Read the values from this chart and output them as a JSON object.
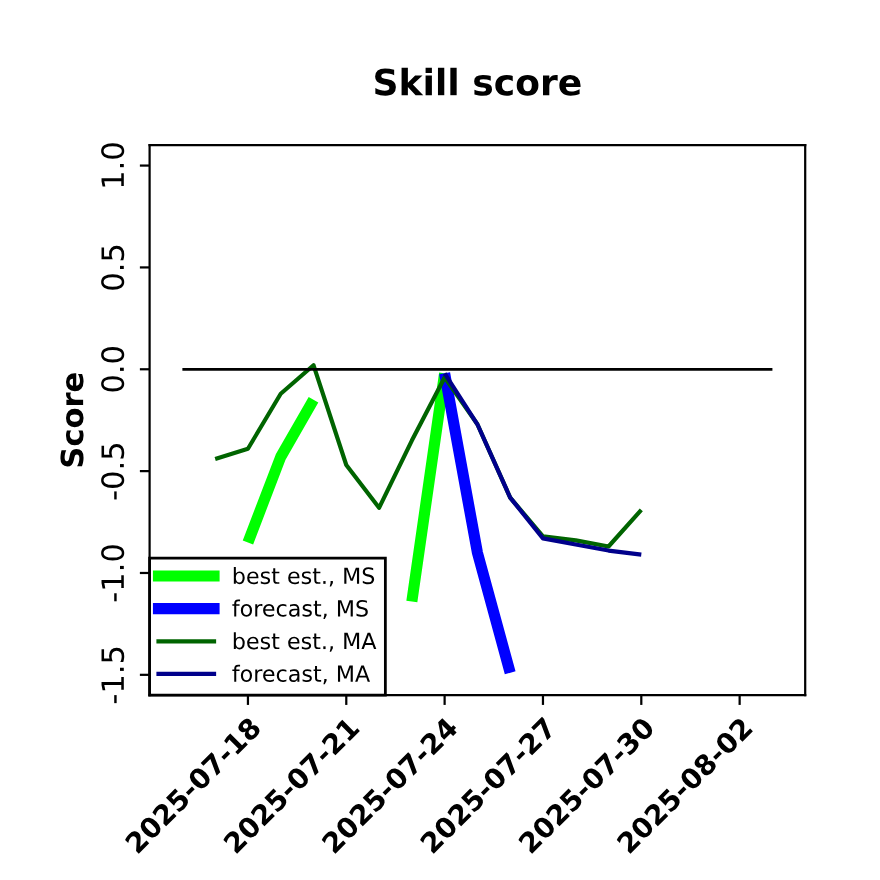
{
  "chart_data": {
    "type": "line",
    "title": "Skill score",
    "ylabel": "Score",
    "x": [
      "2025-07-17",
      "2025-07-18",
      "2025-07-19",
      "2025-07-20",
      "2025-07-21",
      "2025-07-22",
      "2025-07-23",
      "2025-07-24",
      "2025-07-25",
      "2025-07-26",
      "2025-07-27",
      "2025-07-28",
      "2025-07-29",
      "2025-07-30"
    ],
    "series": [
      {
        "name": "best est., MS",
        "color": "#00ff00",
        "values": [
          null,
          -0.85,
          -0.43,
          -0.15,
          null,
          null,
          -1.14,
          -0.02,
          null,
          null,
          null,
          null,
          null,
          null
        ]
      },
      {
        "name": "forecast, MS",
        "color": "#0000ff",
        "values": [
          null,
          null,
          null,
          null,
          null,
          null,
          null,
          -0.02,
          -0.9,
          -1.49,
          null,
          null,
          null,
          null
        ]
      },
      {
        "name": "best est., MA",
        "color": "#006400",
        "values": [
          -0.44,
          -0.39,
          -0.12,
          0.02,
          -0.47,
          -0.68,
          -0.35,
          -0.04,
          -0.27,
          -0.63,
          -0.82,
          -0.84,
          -0.87,
          -0.69
        ]
      },
      {
        "name": "forecast, MA",
        "color": "#00008b",
        "values": [
          null,
          null,
          null,
          null,
          null,
          null,
          null,
          -0.02,
          -0.27,
          -0.63,
          -0.83,
          -0.86,
          -0.89,
          -0.91
        ]
      },
      {
        "color": "#000000",
        "x": [
          "2025-07-16",
          "2025-08-03"
        ],
        "values": [
          0,
          0
        ]
      }
    ],
    "xlim": [
      "2025-07-15",
      "2025-08-04"
    ],
    "xticks": [
      "2025-07-18",
      "2025-07-21",
      "2025-07-24",
      "2025-07-27",
      "2025-07-30",
      "2025-08-02"
    ],
    "ylim": [
      -1.6,
      1.1
    ],
    "yticks": [
      {
        "value": -1.5,
        "label": "-1.5"
      },
      {
        "value": -1.0,
        "label": "-1.0"
      },
      {
        "value": -0.5,
        "label": "-0.5"
      },
      {
        "value": 0,
        "label": "0.0"
      },
      0.5,
      {
        "value": 1,
        "label": "1.0"
      }
    ],
    "legend": "bottom left",
    "grid": false
  }
}
